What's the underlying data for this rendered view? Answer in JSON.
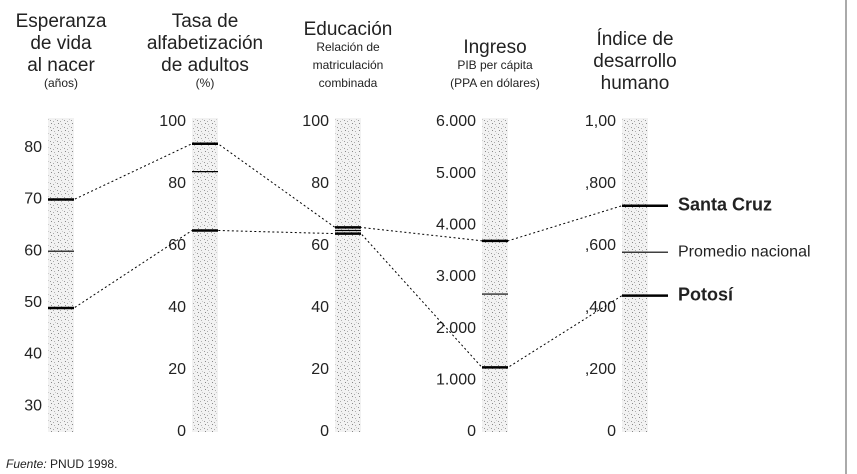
{
  "chart_data": {
    "type": "parallel",
    "axes": [
      {
        "title": [
          "Esperanza",
          "de vida",
          "al nacer"
        ],
        "subtitle": [
          "(años)"
        ],
        "ylim": [
          25,
          85
        ],
        "ticks": [
          30,
          40,
          50,
          60,
          70,
          80
        ]
      },
      {
        "title": [
          "Tasa de",
          "alfabetización",
          "de adultos"
        ],
        "subtitle": [
          "(%)"
        ],
        "ylim": [
          0,
          100
        ],
        "ticks": [
          0,
          20,
          40,
          60,
          80,
          100
        ]
      },
      {
        "title": [
          "Educación"
        ],
        "subtitle": [
          "Relación de",
          "matriculación",
          "combinada"
        ],
        "ylim": [
          0,
          100
        ],
        "ticks": [
          0,
          20,
          40,
          60,
          80,
          100
        ]
      },
      {
        "title": [
          "Ingreso"
        ],
        "subtitle": [
          "PIB per cápita",
          "(PPA en dólares)"
        ],
        "ylim": [
          0,
          6000
        ],
        "ticks": [
          0,
          {
            "value": 1000,
            "label": "1.000"
          },
          {
            "value": 2000,
            "label": "2.000"
          },
          {
            "value": 3000,
            "label": "3.000"
          },
          {
            "value": 4000,
            "label": "4.000"
          },
          {
            "value": 5000,
            "label": "5.000"
          },
          {
            "value": 6000,
            "label": "6.000"
          }
        ]
      },
      {
        "title": [
          "Índice de",
          "desarrollo",
          "humano"
        ],
        "subtitle": [],
        "ylim": [
          0,
          1
        ],
        "ticks": [
          0,
          {
            "value": 0.2,
            "label": ",200"
          },
          {
            "value": 0.4,
            "label": ",400"
          },
          {
            "value": 0.6,
            "label": ",600"
          },
          {
            "value": 0.8,
            "label": ",800"
          },
          {
            "value": 1,
            "label": "1,00"
          }
        ]
      }
    ],
    "series": [
      {
        "name": "Santa Cruz",
        "color": "#000000",
        "bold": true,
        "line_style": "dotted",
        "values": [
          70,
          93,
          66,
          3700,
          0.73
        ]
      },
      {
        "name": "Promedio nacional",
        "color": "#000000",
        "bold": false,
        "values": [
          60,
          84,
          65,
          2670,
          0.58
        ]
      },
      {
        "name": "Potosí",
        "color": "#000000",
        "bold": true,
        "line_style": "dotted",
        "values": [
          49,
          65,
          64,
          1250,
          0.44
        ]
      }
    ],
    "source_label": "Fuente:",
    "source": "PNUD 1998."
  }
}
